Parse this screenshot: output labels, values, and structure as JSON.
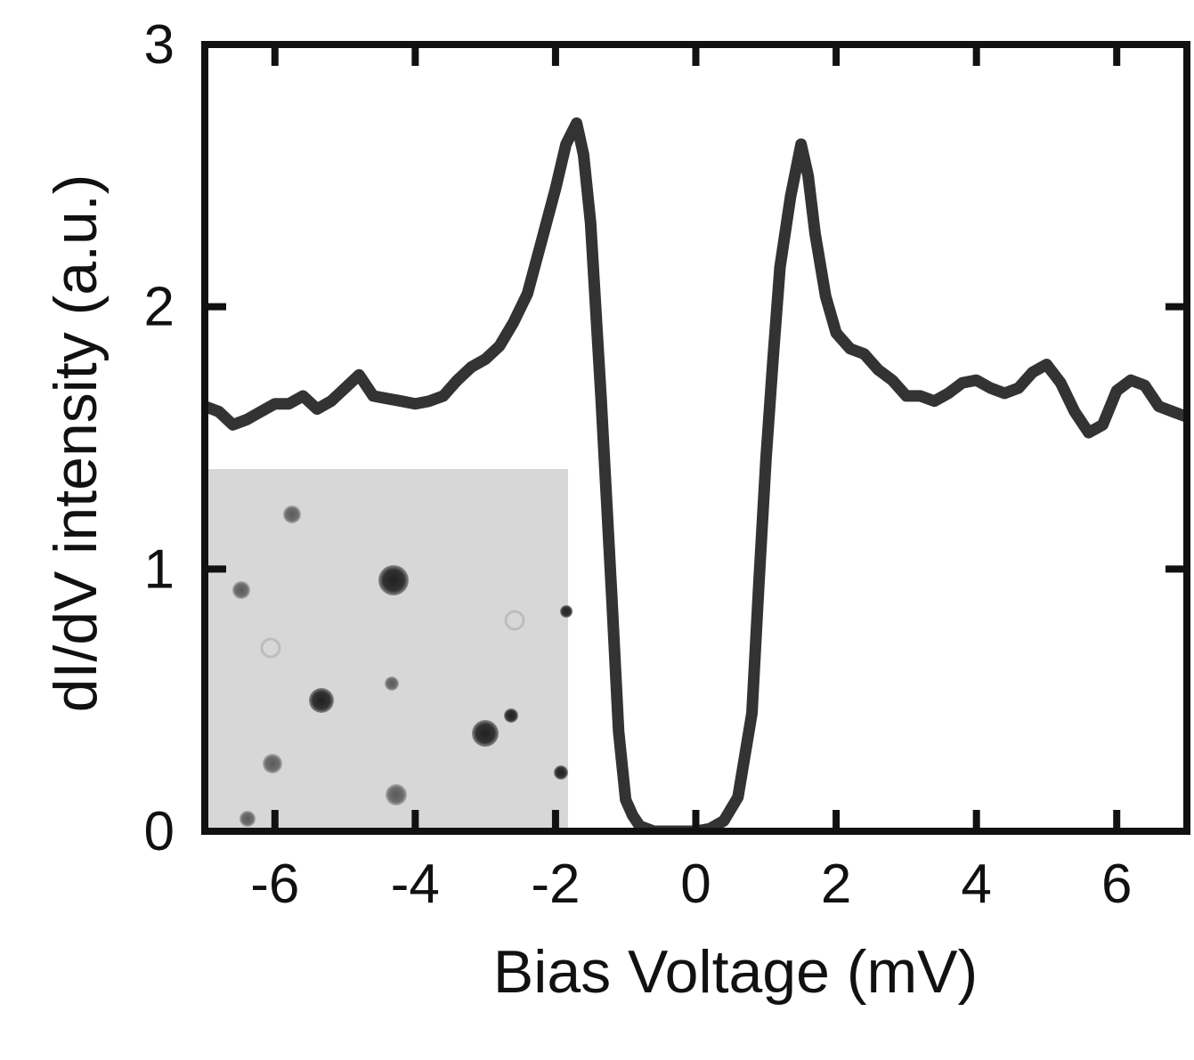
{
  "chart_data": {
    "type": "line",
    "title": "",
    "xlabel": "Bias Voltage (mV)",
    "ylabel": "dI/dV intensity (a.u.)",
    "xlim": [
      -7,
      7
    ],
    "ylim": [
      0,
      3
    ],
    "xticks": [
      -6,
      -4,
      -2,
      0,
      2,
      4,
      6
    ],
    "xtick_labels": [
      "-6",
      "-4",
      "-2",
      "0",
      "2",
      "4",
      "6"
    ],
    "yticks": [
      0,
      1,
      2,
      3
    ],
    "ytick_labels": [
      "0",
      "1",
      "2",
      "3"
    ],
    "grid": false,
    "legend": "none",
    "line_color": "#333333",
    "series": [
      {
        "x": [
          -7.0,
          -6.8,
          -6.6,
          -6.4,
          -6.2,
          -6.0,
          -5.8,
          -5.6,
          -5.4,
          -5.2,
          -5.0,
          -4.8,
          -4.6,
          -4.4,
          -4.2,
          -4.0,
          -3.8,
          -3.6,
          -3.4,
          -3.2,
          -3.0,
          -2.8,
          -2.6,
          -2.4,
          -2.2,
          -2.0,
          -1.85,
          -1.7,
          -1.6,
          -1.5,
          -1.35,
          -1.2,
          -1.1,
          -1.0,
          -0.9,
          -0.8,
          -0.6,
          -0.4,
          -0.2,
          0.0,
          0.2,
          0.4,
          0.6,
          0.8,
          0.9,
          1.0,
          1.1,
          1.2,
          1.35,
          1.5,
          1.6,
          1.7,
          1.85,
          2.0,
          2.2,
          2.4,
          2.6,
          2.8,
          3.0,
          3.2,
          3.4,
          3.6,
          3.8,
          4.0,
          4.2,
          4.4,
          4.6,
          4.8,
          5.0,
          5.2,
          5.4,
          5.6,
          5.8,
          6.0,
          6.2,
          6.4,
          6.6,
          6.8,
          7.0
        ],
        "values": [
          1.62,
          1.6,
          1.55,
          1.57,
          1.6,
          1.63,
          1.63,
          1.66,
          1.61,
          1.64,
          1.69,
          1.74,
          1.66,
          1.65,
          1.64,
          1.63,
          1.64,
          1.66,
          1.72,
          1.77,
          1.8,
          1.85,
          1.94,
          2.05,
          2.25,
          2.45,
          2.62,
          2.7,
          2.58,
          2.32,
          1.65,
          0.9,
          0.38,
          0.12,
          0.06,
          0.02,
          0.0,
          0.0,
          0.0,
          0.0,
          0.01,
          0.04,
          0.13,
          0.45,
          0.95,
          1.42,
          1.8,
          2.15,
          2.42,
          2.62,
          2.5,
          2.28,
          2.04,
          1.9,
          1.84,
          1.82,
          1.76,
          1.72,
          1.66,
          1.66,
          1.64,
          1.67,
          1.71,
          1.72,
          1.69,
          1.67,
          1.69,
          1.75,
          1.78,
          1.71,
          1.6,
          1.52,
          1.55,
          1.68,
          1.72,
          1.7,
          1.62,
          1.6,
          1.58
        ]
      }
    ]
  },
  "inset": {
    "background": "#d7d7d7",
    "spot_color": "#2e2e2e"
  }
}
